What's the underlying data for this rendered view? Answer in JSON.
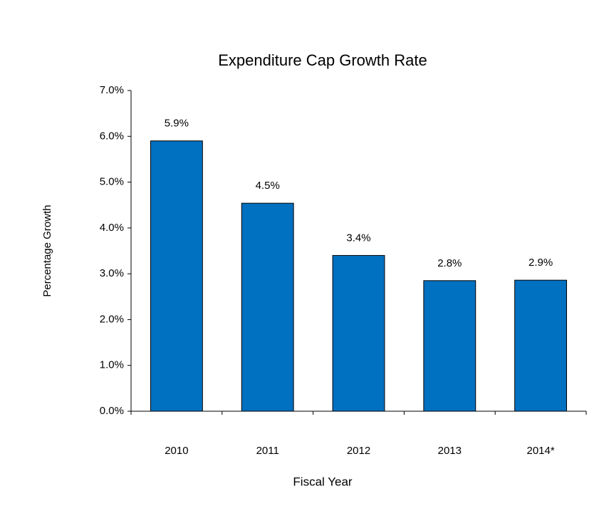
{
  "chart_data": {
    "type": "bar",
    "title": "Expenditure Cap Growth Rate",
    "x_label": "Fiscal Year",
    "y_label": "Percentage Growth",
    "categories": [
      "2010",
      "2011",
      "2012",
      "2013",
      "2014*"
    ],
    "values": [
      5.9,
      4.54,
      3.4,
      2.85,
      2.86
    ],
    "value_labels": [
      "5.9%",
      "4.5%",
      "3.4%",
      "2.8%",
      "2.9%"
    ],
    "color": "#0070c0",
    "ylim": [
      0,
      7
    ],
    "yticks": [
      {
        "value": 0,
        "label": "0.0%"
      },
      {
        "value": 1,
        "label": "1.0%"
      },
      {
        "value": 2,
        "label": "2.0%"
      },
      {
        "value": 3,
        "label": "3.0%"
      },
      {
        "value": 4,
        "label": "4.0%"
      },
      {
        "value": 5,
        "label": "5.0%"
      },
      {
        "value": 6,
        "label": "6.0%"
      },
      {
        "value": 7,
        "label": "7.0%"
      }
    ],
    "grid": false
  }
}
